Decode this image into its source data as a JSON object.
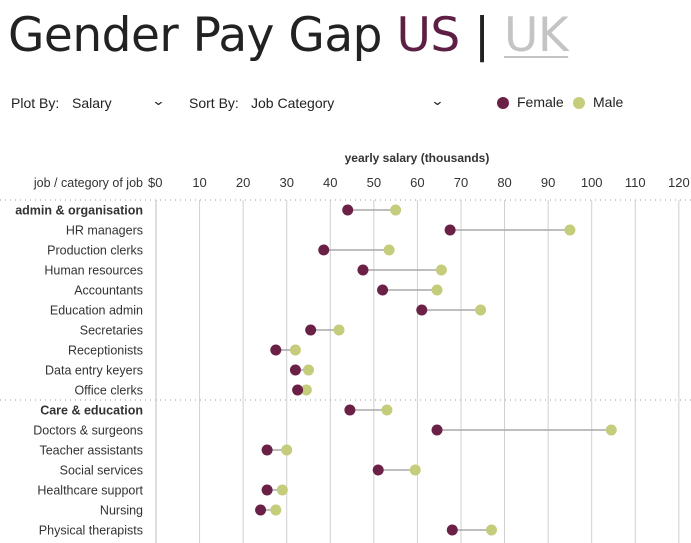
{
  "header": {
    "title_prefix": "Gender Pay Gap",
    "us_label": "US",
    "separator": "|",
    "uk_label": "UK"
  },
  "controls": {
    "plot_by_label": "Plot By:",
    "plot_by_value": "Salary",
    "sort_by_label": "Sort By:",
    "sort_by_value": "Job Category"
  },
  "legend": {
    "female_label": "Female",
    "male_label": "Male"
  },
  "colors": {
    "female": "#6b2146",
    "male": "#c5cc7b",
    "connector": "#a8a8a8",
    "gridline": "#d0d0d0",
    "us_accent": "#5e1f45",
    "uk_inactive": "#c4c4c4"
  },
  "chart_data": {
    "type": "dumbbell",
    "xlabel": "yearly salary (thousands)",
    "ylabel": "job / category of job",
    "xlim": [
      0,
      120
    ],
    "xticks": [
      0,
      10,
      20,
      30,
      40,
      50,
      60,
      70,
      80,
      90,
      100,
      110,
      120
    ],
    "xtick_labels": [
      "$0",
      "10",
      "20",
      "30",
      "40",
      "50",
      "60",
      "70",
      "80",
      "90",
      "100",
      "110",
      "120"
    ],
    "grid": true,
    "legend_position": "top-right",
    "series": [
      {
        "name": "Female",
        "key": "female"
      },
      {
        "name": "Male",
        "key": "male"
      }
    ],
    "rows": [
      {
        "label": "admin & organisation",
        "category": true,
        "female": 44,
        "male": 55
      },
      {
        "label": "HR managers",
        "category": false,
        "female": 67.5,
        "male": 95
      },
      {
        "label": "Production clerks",
        "category": false,
        "female": 38.5,
        "male": 53.5
      },
      {
        "label": "Human resources",
        "category": false,
        "female": 47.5,
        "male": 65.5
      },
      {
        "label": "Accountants",
        "category": false,
        "female": 52,
        "male": 64.5
      },
      {
        "label": "Education admin",
        "category": false,
        "female": 61,
        "male": 74.5
      },
      {
        "label": "Secretaries",
        "category": false,
        "female": 35.5,
        "male": 42
      },
      {
        "label": "Receptionists",
        "category": false,
        "female": 27.5,
        "male": 32
      },
      {
        "label": "Data entry keyers",
        "category": false,
        "female": 32,
        "male": 35
      },
      {
        "label": "Office clerks",
        "category": false,
        "female": 32.5,
        "male": 34.5
      },
      {
        "label": "Care & education",
        "category": true,
        "female": 44.5,
        "male": 53
      },
      {
        "label": "Doctors & surgeons",
        "category": false,
        "female": 64.5,
        "male": 104.5
      },
      {
        "label": "Teacher assistants",
        "category": false,
        "female": 25.5,
        "male": 30
      },
      {
        "label": "Social services",
        "category": false,
        "female": 51,
        "male": 59.5
      },
      {
        "label": "Healthcare support",
        "category": false,
        "female": 25.5,
        "male": 29
      },
      {
        "label": "Nursing",
        "category": false,
        "female": 24,
        "male": 27.5
      },
      {
        "label": "Physical therapists",
        "category": false,
        "female": 68,
        "male": 77
      }
    ]
  }
}
